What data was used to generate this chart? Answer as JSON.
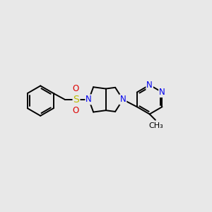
{
  "background_color": "#E8E8E8",
  "bond_color": "#000000",
  "bond_width": 1.4,
  "atom_colors": {
    "N": "#0000EE",
    "S": "#BBBB00",
    "O": "#DD0000",
    "C": "#000000"
  },
  "font_size": 8.5,
  "fig_size": [
    3.0,
    3.0
  ],
  "dpi": 100,
  "xlim": [
    0,
    10
  ],
  "ylim": [
    2,
    8.5
  ]
}
